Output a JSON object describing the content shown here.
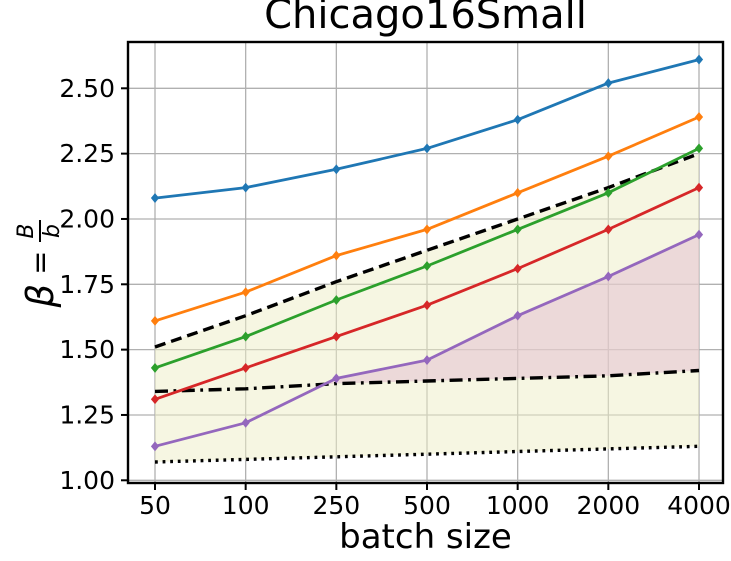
{
  "chart_data": {
    "type": "line",
    "title": "Chicago16Small",
    "xlabel": "batch size",
    "ylabel": "β = B/b",
    "ylabel_parts": {
      "symbol": "β",
      "equals": "=",
      "numerator": "B",
      "denominator": "b"
    },
    "categories": [
      "50",
      "100",
      "250",
      "500",
      "1000",
      "2000",
      "4000"
    ],
    "yticks": [
      1.0,
      1.25,
      1.5,
      1.75,
      2.0,
      2.25,
      2.5
    ],
    "ytick_labels": [
      "1.00",
      "1.25",
      "1.50",
      "1.75",
      "2.00",
      "2.25",
      "2.50"
    ],
    "ylim": [
      0.99,
      2.68
    ],
    "grid": true,
    "legend": "none",
    "axis_color": "#000000",
    "grid_color": "#b0b0b0",
    "series": [
      {
        "name": "blue-line",
        "color": "#1f77b4",
        "style": "solid",
        "marker": true,
        "values": [
          2.08,
          2.12,
          2.19,
          2.27,
          2.38,
          2.52,
          2.61
        ]
      },
      {
        "name": "orange-line",
        "color": "#ff7f0e",
        "style": "solid",
        "marker": true,
        "values": [
          1.61,
          1.72,
          1.86,
          1.96,
          2.1,
          2.24,
          2.39
        ]
      },
      {
        "name": "green-line",
        "color": "#2ca02c",
        "style": "solid",
        "marker": true,
        "values": [
          1.43,
          1.55,
          1.69,
          1.82,
          1.96,
          2.1,
          2.27
        ]
      },
      {
        "name": "red-line",
        "color": "#d62728",
        "style": "solid",
        "marker": true,
        "values": [
          1.31,
          1.43,
          1.55,
          1.67,
          1.81,
          1.96,
          2.12
        ]
      },
      {
        "name": "purple-line",
        "color": "#9467bd",
        "style": "solid",
        "marker": true,
        "values": [
          1.13,
          1.22,
          1.39,
          1.46,
          1.63,
          1.78,
          1.94
        ]
      },
      {
        "name": "dashed-bound",
        "color": "#000000",
        "style": "dashed",
        "marker": false,
        "values": [
          1.51,
          1.63,
          1.76,
          1.88,
          2.0,
          2.12,
          2.25
        ]
      },
      {
        "name": "dashdot-bound",
        "color": "#000000",
        "style": "dashdot",
        "marker": false,
        "values": [
          1.34,
          1.35,
          1.37,
          1.38,
          1.39,
          1.4,
          1.42
        ]
      },
      {
        "name": "dotted-bound",
        "color": "#000000",
        "style": "dotted",
        "marker": false,
        "values": [
          1.07,
          1.08,
          1.09,
          1.1,
          1.11,
          1.12,
          1.13
        ]
      }
    ],
    "fills": [
      {
        "name": "yellow-band",
        "top": "dashed-bound",
        "bottom": "dotted-bound",
        "color": "rgba(237,237,197,0.5)",
        "where": "always"
      },
      {
        "name": "pink-band",
        "top": "purple-line",
        "bottom": "dashdot-bound",
        "color": "rgba(225,187,207,0.5)",
        "where": "top_above_bottom"
      }
    ]
  }
}
